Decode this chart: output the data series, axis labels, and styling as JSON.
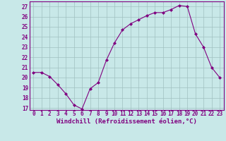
{
  "x": [
    0,
    1,
    2,
    3,
    4,
    5,
    6,
    7,
    8,
    9,
    10,
    11,
    12,
    13,
    14,
    15,
    16,
    17,
    18,
    19,
    20,
    21,
    22,
    23
  ],
  "y": [
    20.5,
    20.5,
    20.1,
    19.3,
    18.4,
    17.3,
    16.9,
    18.9,
    19.5,
    21.7,
    23.4,
    24.7,
    25.3,
    25.7,
    26.1,
    26.4,
    26.4,
    26.7,
    27.1,
    27.0,
    24.3,
    23.0,
    21.0,
    20.0
  ],
  "line_color": "#800080",
  "marker": "D",
  "marker_size": 2.0,
  "bg_color": "#c8e8e8",
  "grid_color": "#a0c0c0",
  "xlabel": "Windchill (Refroidissement éolien,°C)",
  "xlim": [
    -0.5,
    23.5
  ],
  "ylim": [
    16.8,
    27.5
  ],
  "yticks": [
    17,
    18,
    19,
    20,
    21,
    22,
    23,
    24,
    25,
    26,
    27
  ],
  "xticks": [
    0,
    1,
    2,
    3,
    4,
    5,
    6,
    7,
    8,
    9,
    10,
    11,
    12,
    13,
    14,
    15,
    16,
    17,
    18,
    19,
    20,
    21,
    22,
    23
  ],
  "label_color": "#800080",
  "tick_color": "#800080",
  "axis_color": "#800080",
  "tick_font_size": 5.5,
  "xlabel_font_size": 6.5,
  "linewidth": 0.8
}
